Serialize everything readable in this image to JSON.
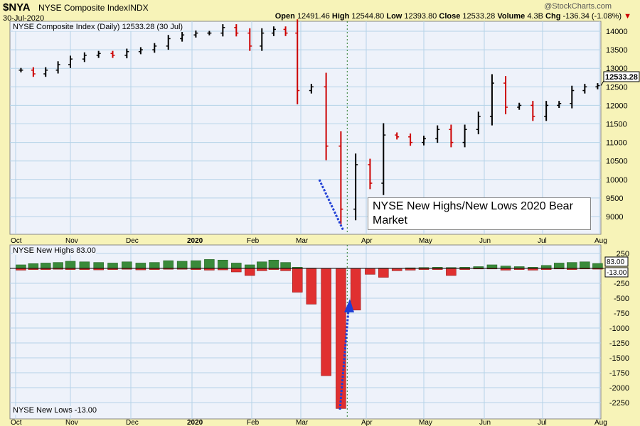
{
  "header": {
    "symbol": "$NYA",
    "name": "NYSE Composite Index",
    "exchange": "INDX",
    "date": "30-Jul-2020",
    "brand": "@StockCharts.com",
    "open_label": "Open",
    "open": "12491.46",
    "high_label": "High",
    "high": "12544.80",
    "low_label": "Low",
    "low": "12393.80",
    "close_label": "Close",
    "close": "12533.28",
    "volume_label": "Volume",
    "volume": "4.3B",
    "chg_label": "Chg",
    "chg": "-136.34 (-1.08%)"
  },
  "colors": {
    "up": "#000000",
    "down": "#cc0000",
    "highs": "#3a8a3a",
    "lows": "#e03030",
    "annotation": "#1f3fd6",
    "panel": "#eef2fa",
    "grid": "#b5d3e8"
  },
  "chart_data": [
    {
      "type": "ohlc",
      "legend": "NYSE Composite Index (Daily) 12533.28 (30 Jul)",
      "last_label": "12533.28",
      "yticks": [
        9000,
        9500,
        10000,
        10500,
        11000,
        11500,
        12000,
        12500,
        13000,
        13500,
        14000
      ],
      "ylim": [
        8600,
        14300
      ],
      "xticks": [
        "Oct",
        "Nov",
        "Dec",
        "2020",
        "Feb",
        "Mar",
        "Apr",
        "May",
        "Jun",
        "Jul",
        "Aug"
      ],
      "dates": [
        "2019-10-04",
        "2019-10-11",
        "2019-10-18",
        "2019-10-25",
        "2019-11-01",
        "2019-11-08",
        "2019-11-15",
        "2019-11-22",
        "2019-11-29",
        "2019-12-06",
        "2019-12-13",
        "2019-12-20",
        "2019-12-27",
        "2020-01-03",
        "2020-01-10",
        "2020-01-17",
        "2020-01-24",
        "2020-01-31",
        "2020-02-07",
        "2020-02-14",
        "2020-02-21",
        "2020-02-28",
        "2020-03-06",
        "2020-03-13",
        "2020-03-20",
        "2020-03-27",
        "2020-04-03",
        "2020-04-10",
        "2020-04-17",
        "2020-04-24",
        "2020-05-01",
        "2020-05-08",
        "2020-05-15",
        "2020-05-22",
        "2020-05-29",
        "2020-06-05",
        "2020-06-12",
        "2020-06-19",
        "2020-06-26",
        "2020-07-03",
        "2020-07-10",
        "2020-07-17",
        "2020-07-24",
        "2020-07-31"
      ],
      "close": [
        12950,
        12850,
        12950,
        13100,
        13250,
        13350,
        13400,
        13350,
        13450,
        13500,
        13600,
        13800,
        13900,
        13950,
        13950,
        14100,
        13950,
        13600,
        13950,
        14050,
        13950,
        12400,
        12500,
        10900,
        9200,
        10400,
        9900,
        11200,
        11150,
        11000,
        11100,
        11350,
        11000,
        11350,
        11700,
        12600,
        11950,
        12000,
        11700,
        12000,
        12050,
        12400,
        12500,
        12533
      ],
      "annotation": "NYSE New Highs/New Lows 2020 Bear Market",
      "marker_date": "2020-03-23"
    },
    {
      "type": "bar",
      "legend_highs": "NYSE New Highs 83.00",
      "legend_lows": "NYSE New Lows -13.00",
      "last_highs": "83.00",
      "last_lows": "-13.00",
      "yticks": [
        250,
        -250,
        -500,
        -750,
        -1000,
        -1250,
        -1500,
        -1750,
        -2000,
        -2250
      ],
      "ylim": [
        -2450,
        380
      ],
      "highs": [
        60,
        80,
        90,
        100,
        120,
        110,
        100,
        90,
        110,
        90,
        100,
        130,
        120,
        130,
        150,
        140,
        90,
        60,
        110,
        140,
        100,
        20,
        5,
        2,
        1,
        1,
        2,
        5,
        3,
        10,
        15,
        20,
        15,
        20,
        30,
        60,
        40,
        30,
        20,
        50,
        90,
        100,
        110,
        83
      ],
      "lows": [
        -30,
        -20,
        -20,
        -15,
        -20,
        -20,
        -25,
        -20,
        -15,
        -25,
        -20,
        -15,
        -15,
        -20,
        -30,
        -25,
        -60,
        -120,
        -40,
        -20,
        -40,
        -400,
        -600,
        -1800,
        -2350,
        -700,
        -100,
        -150,
        -40,
        -30,
        -20,
        -20,
        -120,
        -20,
        -10,
        -10,
        -30,
        -20,
        -30,
        -20,
        -10,
        -20,
        -10,
        -13
      ]
    }
  ]
}
